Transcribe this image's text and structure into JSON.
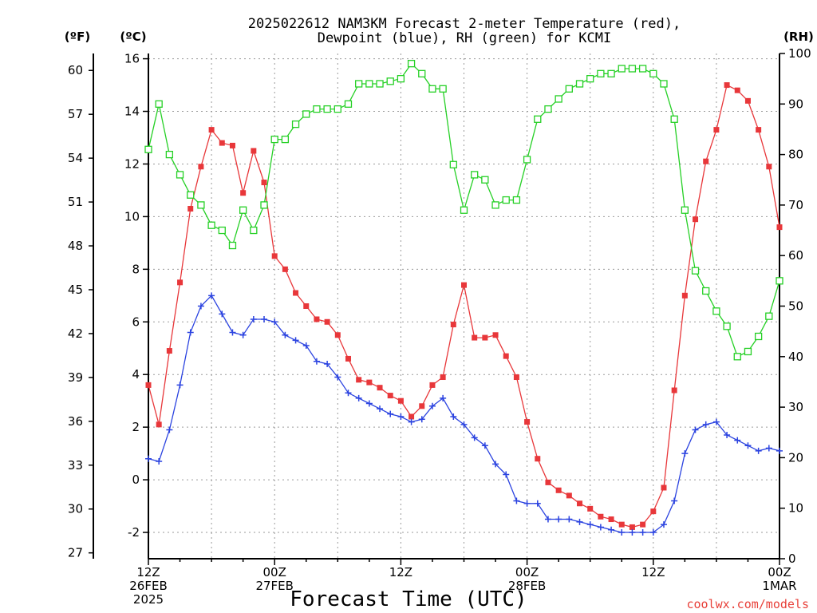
{
  "chart_data": {
    "type": "line",
    "title": [
      "2025022612 NAM3KM Forecast 2-meter Temperature (red),",
      "Dewpoint (blue), RH (green) for KCMI"
    ],
    "xlabel": "Forecast Time (UTC)",
    "credit": "coolwx.com/models",
    "units": {
      "fahrenheit": "(ºF)",
      "celsius": "(ºC)",
      "rh": "(RH)"
    },
    "x_ticks": [
      {
        "hour": 0,
        "lines": [
          "12Z",
          "26FEB",
          "2025"
        ]
      },
      {
        "hour": 12,
        "lines": [
          "00Z",
          "27FEB"
        ]
      },
      {
        "hour": 24,
        "lines": [
          "12Z"
        ]
      },
      {
        "hour": 36,
        "lines": [
          "00Z",
          "28FEB"
        ]
      },
      {
        "hour": 48,
        "lines": [
          "12Z"
        ]
      },
      {
        "hour": 60,
        "lines": [
          "00Z",
          "1MAR"
        ]
      }
    ],
    "x_range_hours": [
      0,
      60
    ],
    "y_celsius": {
      "range": [
        -3,
        16.2
      ],
      "ticks": [
        "-2",
        "0",
        "2",
        "4",
        "6",
        "8",
        "10",
        "12",
        "14",
        "16"
      ]
    },
    "y_fahrenheit": {
      "ticks": [
        "27",
        "30",
        "33",
        "36",
        "39",
        "42",
        "45",
        "48",
        "51",
        "54",
        "57",
        "60"
      ]
    },
    "y_rh": {
      "range": [
        0,
        100
      ],
      "ticks": [
        "0",
        "10",
        "20",
        "30",
        "40",
        "50",
        "60",
        "70",
        "80",
        "90",
        "100"
      ]
    },
    "grid": true,
    "colors": {
      "temperature": "#e8373a",
      "dewpoint": "#2b43e0",
      "rh": "#25d025",
      "grid": "#9a9a9a"
    },
    "series": [
      {
        "name": "Temperature",
        "axis": "celsius",
        "marker": "filled-square",
        "values": [
          3.6,
          2.1,
          4.9,
          7.5,
          10.3,
          11.9,
          13.3,
          12.8,
          12.7,
          10.9,
          12.5,
          11.3,
          8.5,
          8.0,
          7.1,
          6.6,
          6.1,
          6.0,
          5.5,
          4.6,
          3.8,
          3.7,
          3.5,
          3.2,
          3.0,
          2.4,
          2.8,
          3.6,
          3.9,
          5.9,
          7.4,
          5.4,
          5.4,
          5.5,
          4.7,
          3.9,
          2.2,
          0.8,
          -0.1,
          -0.4,
          -0.6,
          -0.9,
          -1.1,
          -1.4,
          -1.5,
          -1.7,
          -1.8,
          -1.7,
          -1.2,
          -0.3,
          3.4,
          7.0,
          9.9,
          12.1,
          13.3,
          15.0,
          14.8,
          14.4,
          13.3,
          11.9,
          9.6
        ]
      },
      {
        "name": "Dewpoint",
        "axis": "celsius",
        "marker": "plus",
        "values": [
          0.8,
          0.7,
          1.9,
          3.6,
          5.6,
          6.6,
          7.0,
          6.3,
          5.6,
          5.5,
          6.1,
          6.1,
          6.0,
          5.5,
          5.3,
          5.1,
          4.5,
          4.4,
          3.9,
          3.3,
          3.1,
          2.9,
          2.7,
          2.5,
          2.4,
          2.2,
          2.3,
          2.8,
          3.1,
          2.4,
          2.1,
          1.6,
          1.3,
          0.6,
          0.2,
          -0.8,
          -0.9,
          -0.9,
          -1.5,
          -1.5,
          -1.5,
          -1.6,
          -1.7,
          -1.8,
          -1.9,
          -2.0,
          -2.0,
          -2.0,
          -2.0,
          -1.7,
          -0.8,
          1.0,
          1.9,
          2.1,
          2.2,
          1.7,
          1.5,
          1.3,
          1.1,
          1.2,
          1.1
        ]
      },
      {
        "name": "Relative Humidity",
        "axis": "rh",
        "marker": "open-square",
        "values": [
          81,
          90,
          80,
          76,
          72,
          70,
          66,
          65,
          62,
          69,
          65,
          70,
          83,
          83,
          86,
          88,
          89,
          89,
          89,
          90,
          94,
          94,
          94,
          94.5,
          95,
          98,
          96,
          93,
          93,
          78,
          69,
          76,
          75,
          70,
          71,
          71,
          79,
          87,
          89,
          91,
          93,
          94,
          95,
          96,
          96,
          97,
          97,
          97,
          96,
          94,
          87,
          69,
          57,
          53,
          49,
          46,
          40,
          41,
          44,
          48,
          55
        ]
      }
    ]
  }
}
